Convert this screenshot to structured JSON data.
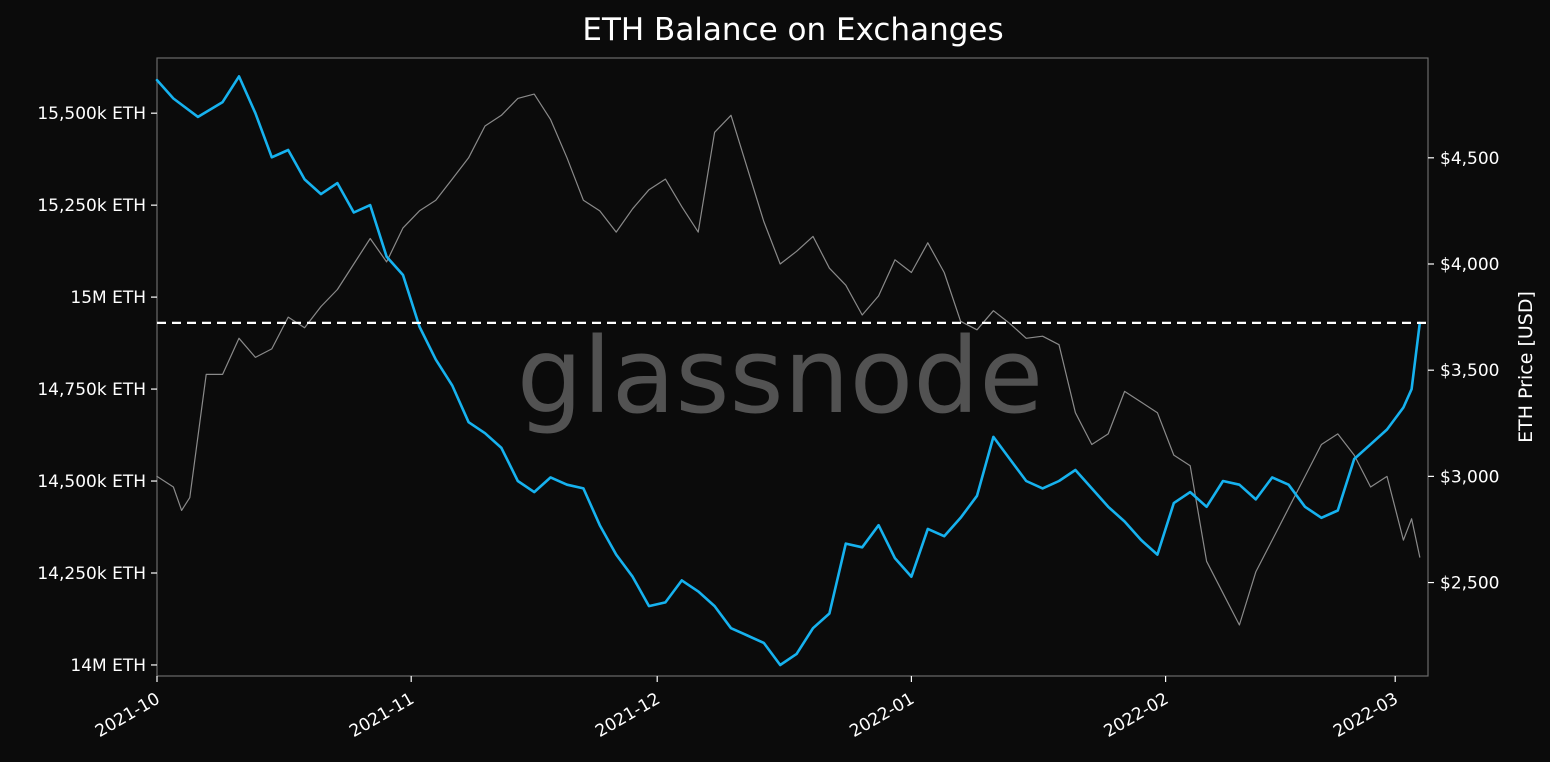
{
  "chart_data": {
    "type": "line",
    "title": "ETH Balance on Exchanges",
    "watermark": "glassnode",
    "xlabel": "",
    "ylabel": "",
    "y2label": "ETH Price [USD]",
    "x_ticks": [
      "2021-10",
      "2021-11",
      "2021-12",
      "2022-01",
      "2022-02",
      "2022-03"
    ],
    "x_range": [
      "2021-10-01",
      "2022-03-05"
    ],
    "y_ticks": [
      "14M ETH",
      "14,250k ETH",
      "14,500k ETH",
      "14,750k ETH",
      "15M ETH",
      "15,250k ETH",
      "15,500k ETH"
    ],
    "y_tick_values": [
      14000000,
      14250000,
      14500000,
      14750000,
      15000000,
      15250000,
      15500000
    ],
    "ylim": [
      13970000,
      15650000
    ],
    "y2_ticks": [
      "$2,500",
      "$3,000",
      "$3,500",
      "$4,000",
      "$4,500"
    ],
    "y2_tick_values": [
      2500,
      3000,
      3500,
      4000,
      4500
    ],
    "y2lim": [
      2060000,
      4970000
    ],
    "reference_line": {
      "axis": "y",
      "value": 14930000,
      "style": "dashed",
      "color": "#ffffff"
    },
    "grid": false,
    "series": [
      {
        "axis": "left",
        "color": "#16b2ef",
        "points": [
          [
            "2021-10-01",
            15590000
          ],
          [
            "2021-10-03",
            15540000
          ],
          [
            "2021-10-06",
            15490000
          ],
          [
            "2021-10-09",
            15530000
          ],
          [
            "2021-10-11",
            15600000
          ],
          [
            "2021-10-13",
            15500000
          ],
          [
            "2021-10-15",
            15380000
          ],
          [
            "2021-10-17",
            15400000
          ],
          [
            "2021-10-19",
            15320000
          ],
          [
            "2021-10-21",
            15280000
          ],
          [
            "2021-10-23",
            15310000
          ],
          [
            "2021-10-25",
            15230000
          ],
          [
            "2021-10-27",
            15250000
          ],
          [
            "2021-10-29",
            15110000
          ],
          [
            "2021-10-31",
            15060000
          ],
          [
            "2021-11-02",
            14920000
          ],
          [
            "2021-11-04",
            14830000
          ],
          [
            "2021-11-06",
            14760000
          ],
          [
            "2021-11-08",
            14660000
          ],
          [
            "2021-11-10",
            14630000
          ],
          [
            "2021-11-12",
            14590000
          ],
          [
            "2021-11-14",
            14500000
          ],
          [
            "2021-11-16",
            14470000
          ],
          [
            "2021-11-18",
            14510000
          ],
          [
            "2021-11-20",
            14490000
          ],
          [
            "2021-11-22",
            14480000
          ],
          [
            "2021-11-24",
            14380000
          ],
          [
            "2021-11-26",
            14300000
          ],
          [
            "2021-11-28",
            14240000
          ],
          [
            "2021-11-30",
            14160000
          ],
          [
            "2021-12-02",
            14170000
          ],
          [
            "2021-12-04",
            14230000
          ],
          [
            "2021-12-06",
            14200000
          ],
          [
            "2021-12-08",
            14160000
          ],
          [
            "2021-12-10",
            14100000
          ],
          [
            "2021-12-12",
            14080000
          ],
          [
            "2021-12-14",
            14060000
          ],
          [
            "2021-12-16",
            14000000
          ],
          [
            "2021-12-18",
            14030000
          ],
          [
            "2021-12-20",
            14100000
          ],
          [
            "2021-12-22",
            14140000
          ],
          [
            "2021-12-24",
            14330000
          ],
          [
            "2021-12-26",
            14320000
          ],
          [
            "2021-12-28",
            14380000
          ],
          [
            "2021-12-30",
            14290000
          ],
          [
            "2022-01-01",
            14240000
          ],
          [
            "2022-01-03",
            14370000
          ],
          [
            "2022-01-05",
            14350000
          ],
          [
            "2022-01-07",
            14400000
          ],
          [
            "2022-01-09",
            14460000
          ],
          [
            "2022-01-11",
            14620000
          ],
          [
            "2022-01-13",
            14560000
          ],
          [
            "2022-01-15",
            14500000
          ],
          [
            "2022-01-17",
            14480000
          ],
          [
            "2022-01-19",
            14500000
          ],
          [
            "2022-01-21",
            14530000
          ],
          [
            "2022-01-23",
            14480000
          ],
          [
            "2022-01-25",
            14430000
          ],
          [
            "2022-01-27",
            14390000
          ],
          [
            "2022-01-29",
            14340000
          ],
          [
            "2022-01-31",
            14300000
          ],
          [
            "2022-02-02",
            14440000
          ],
          [
            "2022-02-04",
            14470000
          ],
          [
            "2022-02-06",
            14430000
          ],
          [
            "2022-02-08",
            14500000
          ],
          [
            "2022-02-10",
            14490000
          ],
          [
            "2022-02-12",
            14450000
          ],
          [
            "2022-02-14",
            14510000
          ],
          [
            "2022-02-16",
            14490000
          ],
          [
            "2022-02-18",
            14430000
          ],
          [
            "2022-02-20",
            14400000
          ],
          [
            "2022-02-22",
            14420000
          ],
          [
            "2022-02-24",
            14560000
          ],
          [
            "2022-02-26",
            14600000
          ],
          [
            "2022-02-28",
            14640000
          ],
          [
            "2022-03-02",
            14700000
          ],
          [
            "2022-03-03",
            14750000
          ],
          [
            "2022-03-04",
            14930000
          ]
        ]
      },
      {
        "axis": "right",
        "color": "#8a8a8a",
        "points": [
          [
            "2021-10-01",
            3000
          ],
          [
            "2021-10-03",
            2950
          ],
          [
            "2021-10-04",
            2840
          ],
          [
            "2021-10-05",
            2900
          ],
          [
            "2021-10-07",
            3480
          ],
          [
            "2021-10-09",
            3480
          ],
          [
            "2021-10-11",
            3650
          ],
          [
            "2021-10-13",
            3560
          ],
          [
            "2021-10-15",
            3600
          ],
          [
            "2021-10-17",
            3750
          ],
          [
            "2021-10-19",
            3700
          ],
          [
            "2021-10-21",
            3800
          ],
          [
            "2021-10-23",
            3880
          ],
          [
            "2021-10-25",
            4000
          ],
          [
            "2021-10-27",
            4120
          ],
          [
            "2021-10-29",
            4010
          ],
          [
            "2021-10-31",
            4170
          ],
          [
            "2021-11-02",
            4250
          ],
          [
            "2021-11-04",
            4300
          ],
          [
            "2021-11-06",
            4400
          ],
          [
            "2021-11-08",
            4500
          ],
          [
            "2021-11-10",
            4650
          ],
          [
            "2021-11-12",
            4700
          ],
          [
            "2021-11-14",
            4780
          ],
          [
            "2021-11-16",
            4800
          ],
          [
            "2021-11-18",
            4680
          ],
          [
            "2021-11-20",
            4500
          ],
          [
            "2021-11-22",
            4300
          ],
          [
            "2021-11-24",
            4250
          ],
          [
            "2021-11-26",
            4150
          ],
          [
            "2021-11-28",
            4260
          ],
          [
            "2021-11-30",
            4350
          ],
          [
            "2021-12-02",
            4400
          ],
          [
            "2021-12-04",
            4270
          ],
          [
            "2021-12-06",
            4150
          ],
          [
            "2021-12-08",
            4620
          ],
          [
            "2021-12-10",
            4700
          ],
          [
            "2021-12-12",
            4450
          ],
          [
            "2021-12-14",
            4200
          ],
          [
            "2021-12-16",
            4000
          ],
          [
            "2021-12-18",
            4060
          ],
          [
            "2021-12-20",
            4130
          ],
          [
            "2021-12-22",
            3980
          ],
          [
            "2021-12-24",
            3900
          ],
          [
            "2021-12-26",
            3760
          ],
          [
            "2021-12-28",
            3850
          ],
          [
            "2021-12-30",
            4020
          ],
          [
            "2022-01-01",
            3960
          ],
          [
            "2022-01-03",
            4100
          ],
          [
            "2022-01-05",
            3960
          ],
          [
            "2022-01-07",
            3730
          ],
          [
            "2022-01-09",
            3690
          ],
          [
            "2022-01-11",
            3780
          ],
          [
            "2022-01-13",
            3720
          ],
          [
            "2022-01-15",
            3650
          ],
          [
            "2022-01-17",
            3660
          ],
          [
            "2022-01-19",
            3620
          ],
          [
            "2022-01-21",
            3300
          ],
          [
            "2022-01-23",
            3150
          ],
          [
            "2022-01-25",
            3200
          ],
          [
            "2022-01-27",
            3400
          ],
          [
            "2022-01-29",
            3350
          ],
          [
            "2022-01-31",
            3300
          ],
          [
            "2022-02-02",
            3100
          ],
          [
            "2022-02-04",
            3050
          ],
          [
            "2022-02-06",
            2600
          ],
          [
            "2022-02-08",
            2450
          ],
          [
            "2022-02-10",
            2300
          ],
          [
            "2022-02-12",
            2550
          ],
          [
            "2022-02-14",
            2700
          ],
          [
            "2022-02-16",
            2850
          ],
          [
            "2022-02-18",
            3000
          ],
          [
            "2022-02-20",
            3150
          ],
          [
            "2022-02-22",
            3200
          ],
          [
            "2022-02-24",
            3100
          ],
          [
            "2022-02-26",
            2950
          ],
          [
            "2022-02-28",
            3000
          ],
          [
            "2022-03-01",
            2850
          ],
          [
            "2022-03-02",
            2700
          ],
          [
            "2022-03-03",
            2800
          ],
          [
            "2022-03-04",
            2620
          ]
        ]
      }
    ]
  }
}
